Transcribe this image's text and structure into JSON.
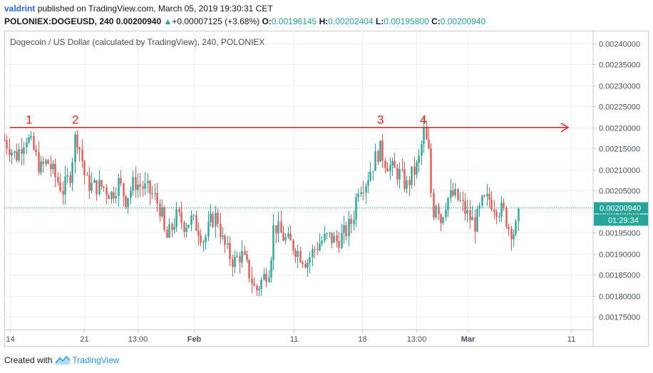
{
  "header": {
    "author": "valdrint",
    "published": "published on TradingView.com, March 05, 2019 19:30:31 CET",
    "symbol": "POLONIEX:DOGEUSD, 240",
    "last": "0.00200940",
    "change_arrow": "▲",
    "change": "+0.00007125 (+3.68%)",
    "o_label": "O:",
    "o": "0.00196145",
    "h_label": "H:",
    "h": "0.00202404",
    "l_label": "L:",
    "l": "0.00195800",
    "c_label": "C:",
    "c": "0.00200940"
  },
  "footer": {
    "created_with": "Created with",
    "brand": "TradingView"
  },
  "colors": {
    "up": "#26a69a",
    "down": "#ef5350",
    "annotation": "#ee1c1c",
    "accent": "#2962ff"
  },
  "chart_data": {
    "type": "candlestick",
    "title": "Dogecoin / US Dollar (calculated by TradingView), 240, POLONIEX",
    "y_ticks": [
      "0.00240000",
      "0.00235000",
      "0.00230000",
      "0.00225000",
      "0.00220000",
      "0.00215000",
      "0.00210000",
      "0.00205000",
      "0.00200000",
      "0.00195000",
      "0.00190000",
      "0.00185000",
      "0.00180000",
      "0.00175000"
    ],
    "ylim": [
      0.00172,
      0.00243
    ],
    "x_ticks": [
      "14",
      "21",
      "13:00",
      "Feb",
      "11",
      "18",
      "13:00",
      "Mar",
      "11"
    ],
    "last_price_label": "0.00200940",
    "countdown_label": "01:29:34",
    "last_price": 0.0020094,
    "resistance": {
      "price": 0.0022,
      "touches": [
        "1",
        "2",
        "3",
        "4"
      ]
    },
    "path": [
      [
        0,
        0.00217
      ],
      [
        16,
        0.00213
      ],
      [
        30,
        0.00218
      ],
      [
        40,
        0.00215
      ],
      [
        50,
        0.0021
      ],
      [
        60,
        0.00212
      ],
      [
        72,
        0.00208
      ],
      [
        82,
        0.00205
      ],
      [
        92,
        0.00209
      ],
      [
        100,
        0.00219
      ],
      [
        108,
        0.00213
      ],
      [
        114,
        0.00207
      ],
      [
        124,
        0.00206
      ],
      [
        138,
        0.00206
      ],
      [
        150,
        0.00204
      ],
      [
        160,
        0.00207
      ],
      [
        170,
        0.00203
      ],
      [
        182,
        0.00207
      ],
      [
        192,
        0.00206
      ],
      [
        202,
        0.00205
      ],
      [
        212,
        0.00203
      ],
      [
        220,
        0.002
      ],
      [
        226,
        0.00193
      ],
      [
        234,
        0.00196
      ],
      [
        242,
        0.00199
      ],
      [
        252,
        0.00197
      ],
      [
        262,
        0.00198
      ],
      [
        272,
        0.00196
      ],
      [
        280,
        0.00193
      ],
      [
        290,
        0.00198
      ],
      [
        298,
        0.00199
      ],
      [
        306,
        0.00193
      ],
      [
        314,
        0.0019
      ],
      [
        322,
        0.00188
      ],
      [
        332,
        0.0019
      ],
      [
        342,
        0.00186
      ],
      [
        352,
        0.00181
      ],
      [
        362,
        0.00184
      ],
      [
        372,
        0.00187
      ],
      [
        378,
        0.00197
      ],
      [
        386,
        0.00195
      ],
      [
        396,
        0.00193
      ],
      [
        404,
        0.00192
      ],
      [
        414,
        0.0019
      ],
      [
        424,
        0.00188
      ],
      [
        434,
        0.00191
      ],
      [
        444,
        0.00193
      ],
      [
        454,
        0.00194
      ],
      [
        466,
        0.00193
      ],
      [
        478,
        0.00195
      ],
      [
        488,
        0.00198
      ],
      [
        496,
        0.00206
      ],
      [
        506,
        0.00207
      ],
      [
        516,
        0.00211
      ],
      [
        526,
        0.00215
      ],
      [
        534,
        0.00212
      ],
      [
        544,
        0.0021
      ],
      [
        554,
        0.00209
      ],
      [
        564,
        0.00206
      ],
      [
        572,
        0.00209
      ],
      [
        580,
        0.00211
      ],
      [
        588,
        0.00219
      ],
      [
        596,
        0.00213
      ],
      [
        600,
        0.00199
      ],
      [
        606,
        0.00203
      ],
      [
        612,
        0.00198
      ],
      [
        620,
        0.00203
      ],
      [
        630,
        0.00204
      ],
      [
        640,
        0.00202
      ],
      [
        650,
        0.00199
      ],
      [
        660,
        0.00197
      ],
      [
        670,
        0.00202
      ],
      [
        680,
        0.00203
      ],
      [
        690,
        0.00201
      ],
      [
        700,
        0.002
      ],
      [
        708,
        0.00196
      ],
      [
        716,
        0.00195
      ],
      [
        724,
        0.00201
      ]
    ]
  }
}
